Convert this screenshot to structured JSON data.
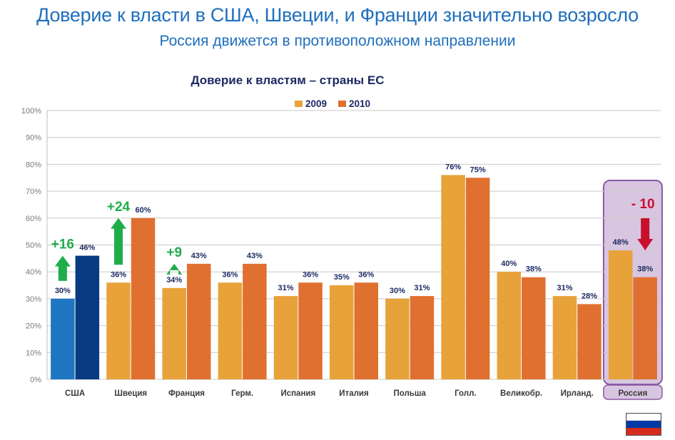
{
  "slide": {
    "title": "Доверие к власти в США, Швеции, и Франции значительно возросло",
    "subtitle": "Россия движется в противоположном направлении"
  },
  "colors": {
    "title": "#1f6fbd",
    "series_2009": "#e8a23a",
    "series_2010": "#e07030",
    "usa_2009": "#1f77c4",
    "usa_2010": "#083b82",
    "increase": "#1fad4b",
    "decrease": "#c8102e",
    "highlight_fill": "#d8c6e0",
    "highlight_border": "#8b5aa4"
  },
  "chart_data": {
    "type": "bar",
    "title": "Доверие к властям – страны ЕС",
    "xlabel": "",
    "ylabel": "",
    "ylim": [
      0,
      100
    ],
    "y_ticks": [
      "0%",
      "10%",
      "20%",
      "30%",
      "40%",
      "50%",
      "60%",
      "70%",
      "80%",
      "90%",
      "100%"
    ],
    "grid": true,
    "legend_position": "top-center",
    "categories": [
      "США",
      "Швеция",
      "Франция",
      "Герм.",
      "Испания",
      "Италия",
      "Польша",
      "Голл.",
      "Великобр.",
      "Ирланд.",
      "Россия"
    ],
    "series": [
      {
        "name": "2009",
        "values": [
          30,
          36,
          34,
          36,
          31,
          35,
          30,
          76,
          40,
          31,
          48
        ],
        "labels": [
          "30%",
          "36%",
          "34%",
          "36%",
          "31%",
          "35%",
          "30%",
          "76%",
          "40%",
          "31%",
          "48%"
        ]
      },
      {
        "name": "2010",
        "values": [
          46,
          60,
          43,
          43,
          36,
          36,
          31,
          75,
          38,
          28,
          38
        ],
        "labels": [
          "46%",
          "60%",
          "43%",
          "43%",
          "36%",
          "36%",
          "31%",
          "75%",
          "38%",
          "28%",
          "38%"
        ]
      }
    ],
    "changes": [
      {
        "category": "США",
        "label": "+16",
        "direction": "up"
      },
      {
        "category": "Швеция",
        "label": "+24",
        "direction": "up"
      },
      {
        "category": "Франция",
        "label": "+9",
        "direction": "up"
      },
      {
        "category": "Россия",
        "label": "- 10",
        "direction": "down"
      }
    ],
    "highlighted_category": "Россия"
  },
  "flag": {
    "icon": "russia-flag-icon",
    "colors": [
      "#ffffff",
      "#0039a6",
      "#d52b1e"
    ]
  }
}
